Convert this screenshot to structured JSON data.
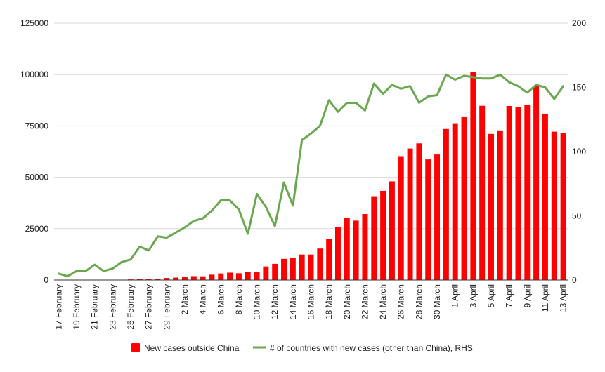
{
  "chart_data": {
    "type": "bar",
    "categories": [
      "17 February",
      "18 February",
      "19 February",
      "20 February",
      "21 February",
      "22 February",
      "23 February",
      "24 February",
      "25 February",
      "26 February",
      "27 February",
      "28 February",
      "29 February",
      "1 March",
      "2 March",
      "3 March",
      "4 March",
      "5 March",
      "6 March",
      "7 March",
      "8 March",
      "9 March",
      "10 March",
      "11 March",
      "12 March",
      "13 March",
      "14 March",
      "15 March",
      "16 March",
      "17 March",
      "18 March",
      "19 March",
      "20 March",
      "21 March",
      "22 March",
      "23 March",
      "24 March",
      "25 March",
      "26 March",
      "27 March",
      "28 March",
      "29 March",
      "30 March",
      "31 March",
      "1 April",
      "2 April",
      "3 April",
      "4 April",
      "5 April",
      "6 April",
      "7 April",
      "8 April",
      "9 April",
      "10 April",
      "11 April",
      "12 April",
      "13 April"
    ],
    "x_tick_labels": [
      "17 February",
      "19 February",
      "21 February",
      "23 February",
      "25 February",
      "27 February",
      "29 February",
      "2 March",
      "4 March",
      "6 March",
      "8 March",
      "10 March",
      "12 March",
      "14 March",
      "16 March",
      "18 March",
      "20 March",
      "22 March",
      "24 March",
      "26 March",
      "28 March",
      "30 March",
      "1 April",
      "3 April",
      "5 April",
      "7 April",
      "9 April",
      "11 April",
      "13 April"
    ],
    "series": [
      {
        "name": "New cases outside China",
        "type": "bar",
        "axis": "left",
        "color": "#ff0000",
        "values": [
          0,
          0,
          0,
          0,
          0,
          0,
          0,
          0,
          300,
          400,
          500,
          700,
          1000,
          1200,
          1500,
          1900,
          1800,
          2600,
          3200,
          3600,
          3300,
          3900,
          4000,
          6600,
          7900,
          10300,
          10800,
          12400,
          12400,
          15300,
          20000,
          25800,
          30400,
          28900,
          32100,
          40800,
          43400,
          48000,
          60300,
          64000,
          66500,
          58700,
          61100,
          73500,
          76300,
          79500,
          101300,
          84800,
          71100,
          72800,
          84700,
          84100,
          85400,
          94400,
          80600,
          72200,
          71500
        ]
      },
      {
        "name": "# of countries with new cases (other than China), RHS",
        "type": "line",
        "axis": "right",
        "color": "#6aa84f",
        "values": [
          5,
          3,
          7,
          7,
          12,
          7,
          9,
          14,
          16,
          26,
          23,
          34,
          33,
          37,
          41,
          46,
          48,
          54,
          62,
          62,
          55,
          36,
          67,
          57,
          42,
          76,
          58,
          109,
          114,
          120,
          140,
          131,
          138,
          138,
          132,
          153,
          145,
          152,
          149,
          151,
          138,
          143,
          144,
          160,
          156,
          159,
          158,
          157,
          157,
          160,
          154,
          151,
          146,
          152,
          150,
          141,
          151
        ]
      }
    ],
    "y_left": {
      "min": 0,
      "max": 125000,
      "ticks": [
        0,
        25000,
        50000,
        75000,
        100000,
        125000
      ]
    },
    "y_right": {
      "min": 0,
      "max": 200,
      "ticks": [
        0,
        50,
        100,
        150,
        200
      ]
    },
    "grid": true,
    "legend_position": "bottom"
  }
}
